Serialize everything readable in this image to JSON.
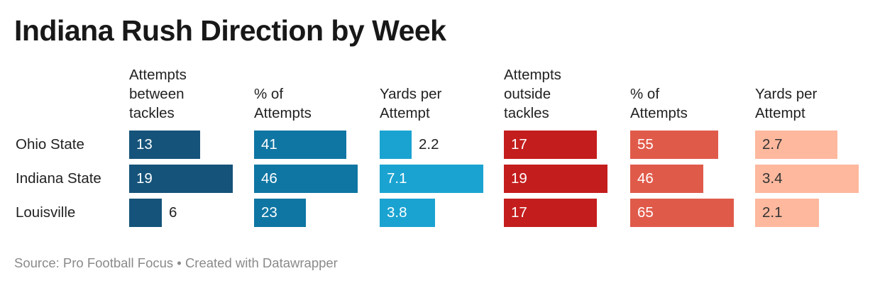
{
  "title": "Indiana Rush Direction by Week",
  "footer": {
    "source": "Source: Pro Football Focus",
    "separator": " • ",
    "credit": "Created with Datawrapper"
  },
  "chart_data": {
    "type": "table",
    "rows": [
      "Ohio State",
      "Indiana State",
      "Louisville"
    ],
    "columns": [
      {
        "header": "Attempts between tackles",
        "header_lines": [
          "Attempts",
          "between",
          "tackles"
        ],
        "values": [
          13,
          19,
          6
        ],
        "display": [
          "13",
          "19",
          "6"
        ],
        "max": 19,
        "color": "#15537a",
        "text_color": "#ffffff"
      },
      {
        "header": "% of Attempts",
        "header_lines": [
          "% of",
          "Attempts"
        ],
        "values": [
          41,
          46,
          23
        ],
        "display": [
          "41",
          "46",
          "23"
        ],
        "max": 46,
        "color": "#0f76a3",
        "text_color": "#ffffff"
      },
      {
        "header": "Yards per Attempt",
        "header_lines": [
          "Yards per",
          "Attempt"
        ],
        "values": [
          2.2,
          7.1,
          3.8
        ],
        "display": [
          "2.2",
          "7.1",
          "3.8"
        ],
        "max": 7.1,
        "color": "#1aa3d1",
        "text_color": "#ffffff"
      },
      {
        "header": "Attempts outside tackles",
        "header_lines": [
          "Attempts",
          "outside",
          "tackles"
        ],
        "values": [
          17,
          19,
          17
        ],
        "display": [
          "17",
          "19",
          "17"
        ],
        "max": 19,
        "color": "#c41d1d",
        "text_color": "#ffffff"
      },
      {
        "header": "% of Attempts",
        "header_lines": [
          "% of",
          "Attempts"
        ],
        "values": [
          55,
          46,
          65
        ],
        "display": [
          "55",
          "46",
          "65"
        ],
        "max": 65,
        "color": "#e05a4a",
        "text_color": "#ffffff"
      },
      {
        "header": "Yards per Attempt",
        "header_lines": [
          "Yards per",
          "Attempt"
        ],
        "values": [
          2.7,
          3.4,
          2.1
        ],
        "display": [
          "2.7",
          "3.4",
          "2.1"
        ],
        "max": 3.4,
        "color": "#fdb89e",
        "text_color": "#333333"
      }
    ]
  }
}
